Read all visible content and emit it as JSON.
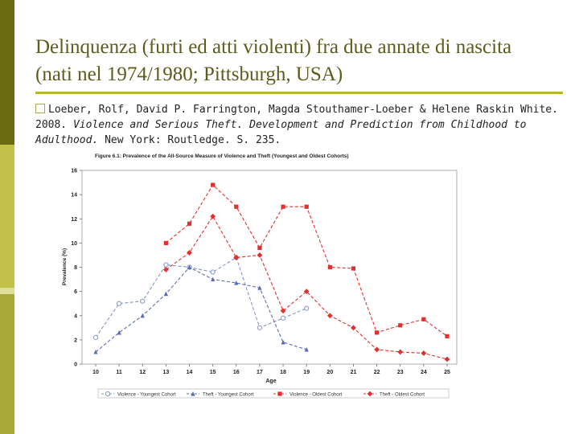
{
  "slide": {
    "title": "Delinquenza (furti ed atti violenti) fra due annate di nascita (nati nel 1974/1980; Pittsburgh, USA)",
    "citation_part1": "Loeber, Rolf, David P. Farrington, Magda Stouthamer-Loeber & Helene Raskin White. 2008. ",
    "citation_italic": "Violence and  Serious Theft. Development and Prediction from Childhood to Adulthood.",
    "citation_part2": " New York: Routledge. S. 235."
  },
  "theme": {
    "title_color": "#5c5c1c",
    "rule_color": "#b8b42c",
    "sidebar_colors": [
      "#6b6b12",
      "#c2c24a",
      "#dede9a",
      "#a9a93a"
    ]
  },
  "chart_data": {
    "type": "line",
    "title": "Figure 6.1: Prevalence of the All-Source Measure of Violence and Theft (Youngest and Oldest Cohorts)",
    "xlabel": "Age",
    "ylabel": "Prevalence (%)",
    "x": [
      10,
      11,
      12,
      13,
      14,
      15,
      16,
      17,
      18,
      19,
      20,
      21,
      22,
      23,
      24,
      25
    ],
    "xlim": [
      10,
      25
    ],
    "ylim": [
      0,
      16
    ],
    "yticks": [
      0,
      2,
      4,
      6,
      8,
      10,
      12,
      14,
      16
    ],
    "legend_position": "bottom",
    "series": [
      {
        "name": "Violence - Youngest Cohort",
        "color": "#8494c8",
        "marker": "circle",
        "x": [
          10,
          11,
          12,
          13,
          14,
          15,
          16,
          17,
          18,
          19
        ],
        "values": [
          2.2,
          5.0,
          5.2,
          8.2,
          8.0,
          7.6,
          8.8,
          3.0,
          3.8,
          4.6
        ]
      },
      {
        "name": "Theft - Youngest Cohort",
        "color": "#5a6cb8",
        "marker": "triangle",
        "x": [
          10,
          11,
          12,
          13,
          14,
          15,
          16,
          17,
          18,
          19
        ],
        "values": [
          1.0,
          2.6,
          4.0,
          5.8,
          8.0,
          7.0,
          6.7,
          6.3,
          1.8,
          1.2
        ]
      },
      {
        "name": "Violence - Oldest Cohort",
        "color": "#e03030",
        "marker": "square",
        "x": [
          13,
          14,
          15,
          16,
          17,
          18,
          19,
          20,
          21,
          22,
          23,
          24,
          25
        ],
        "values": [
          10.0,
          11.6,
          14.8,
          13.0,
          9.6,
          13.0,
          13.0,
          8.0,
          7.9,
          2.6,
          3.2,
          3.7,
          2.3
        ]
      },
      {
        "name": "Theft - Oldest Cohort",
        "color": "#e03030",
        "marker": "diamond",
        "x": [
          13,
          14,
          15,
          16,
          17,
          18,
          19,
          20,
          21,
          22,
          23,
          24,
          25
        ],
        "values": [
          7.8,
          9.2,
          12.2,
          8.8,
          9.0,
          4.4,
          6.0,
          4.0,
          3.0,
          1.2,
          1.0,
          0.9,
          0.4
        ]
      }
    ]
  }
}
